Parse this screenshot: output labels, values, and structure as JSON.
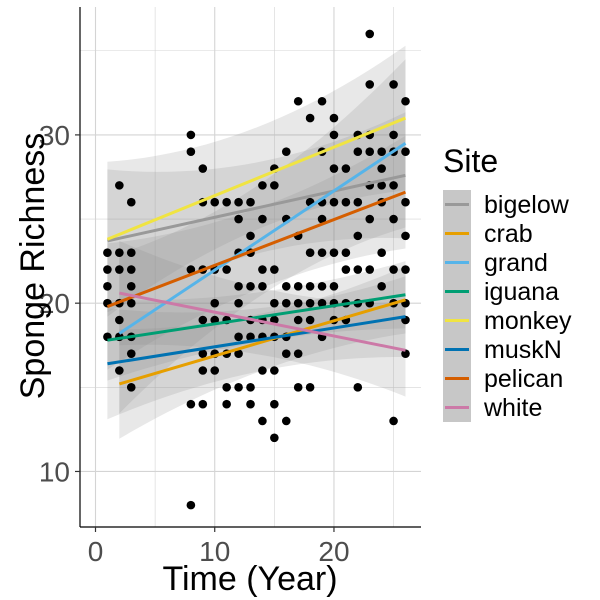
{
  "chart_data": {
    "type": "scatter",
    "xlabel": "Time (Year)",
    "ylabel": "Sponge Richness",
    "xlim": [
      -1.3,
      27.3
    ],
    "ylim": [
      6.7,
      37.6
    ],
    "x_ticks": [
      0,
      10,
      20
    ],
    "x_tick_labels": [
      "0",
      "10",
      "20"
    ],
    "y_ticks": [
      10,
      20,
      30
    ],
    "y_tick_labels": [
      "10",
      "20",
      "30"
    ],
    "grid": true,
    "legend_title": "Site",
    "legend_position": "right",
    "points": [
      {
        "x": 1,
        "y": 23
      },
      {
        "x": 1,
        "y": 22
      },
      {
        "x": 1,
        "y": 21
      },
      {
        "x": 1,
        "y": 20
      },
      {
        "x": 1,
        "y": 18
      },
      {
        "x": 2,
        "y": 27
      },
      {
        "x": 2,
        "y": 23
      },
      {
        "x": 2,
        "y": 22
      },
      {
        "x": 2,
        "y": 20
      },
      {
        "x": 2,
        "y": 19
      },
      {
        "x": 2,
        "y": 18
      },
      {
        "x": 2,
        "y": 16
      },
      {
        "x": 3,
        "y": 26
      },
      {
        "x": 3,
        "y": 23
      },
      {
        "x": 3,
        "y": 22
      },
      {
        "x": 3,
        "y": 21
      },
      {
        "x": 3,
        "y": 20
      },
      {
        "x": 3,
        "y": 18
      },
      {
        "x": 3,
        "y": 17
      },
      {
        "x": 3,
        "y": 15
      },
      {
        "x": 8,
        "y": 30
      },
      {
        "x": 8,
        "y": 29
      },
      {
        "x": 8,
        "y": 22
      },
      {
        "x": 8,
        "y": 14
      },
      {
        "x": 8,
        "y": 8
      },
      {
        "x": 9,
        "y": 28
      },
      {
        "x": 9,
        "y": 26
      },
      {
        "x": 9,
        "y": 22
      },
      {
        "x": 9,
        "y": 19
      },
      {
        "x": 9,
        "y": 17
      },
      {
        "x": 9,
        "y": 16
      },
      {
        "x": 9,
        "y": 14
      },
      {
        "x": 10,
        "y": 26
      },
      {
        "x": 10,
        "y": 22
      },
      {
        "x": 10,
        "y": 20
      },
      {
        "x": 10,
        "y": 19
      },
      {
        "x": 10,
        "y": 17
      },
      {
        "x": 10,
        "y": 16
      },
      {
        "x": 11,
        "y": 26
      },
      {
        "x": 11,
        "y": 22
      },
      {
        "x": 11,
        "y": 19
      },
      {
        "x": 11,
        "y": 17
      },
      {
        "x": 11,
        "y": 15
      },
      {
        "x": 11,
        "y": 14
      },
      {
        "x": 12,
        "y": 26
      },
      {
        "x": 12,
        "y": 25
      },
      {
        "x": 12,
        "y": 23
      },
      {
        "x": 12,
        "y": 21
      },
      {
        "x": 12,
        "y": 20
      },
      {
        "x": 12,
        "y": 18
      },
      {
        "x": 12,
        "y": 17
      },
      {
        "x": 12,
        "y": 15
      },
      {
        "x": 13,
        "y": 26
      },
      {
        "x": 13,
        "y": 24
      },
      {
        "x": 13,
        "y": 23
      },
      {
        "x": 13,
        "y": 21
      },
      {
        "x": 13,
        "y": 19
      },
      {
        "x": 13,
        "y": 18
      },
      {
        "x": 13,
        "y": 15
      },
      {
        "x": 13,
        "y": 14
      },
      {
        "x": 14,
        "y": 27
      },
      {
        "x": 14,
        "y": 25
      },
      {
        "x": 14,
        "y": 22
      },
      {
        "x": 14,
        "y": 21
      },
      {
        "x": 14,
        "y": 19
      },
      {
        "x": 14,
        "y": 18
      },
      {
        "x": 14,
        "y": 16
      },
      {
        "x": 14,
        "y": 13
      },
      {
        "x": 15,
        "y": 28
      },
      {
        "x": 15,
        "y": 27
      },
      {
        "x": 15,
        "y": 22
      },
      {
        "x": 15,
        "y": 20
      },
      {
        "x": 15,
        "y": 19
      },
      {
        "x": 15,
        "y": 18
      },
      {
        "x": 15,
        "y": 16
      },
      {
        "x": 15,
        "y": 14
      },
      {
        "x": 15,
        "y": 12
      },
      {
        "x": 16,
        "y": 29
      },
      {
        "x": 16,
        "y": 25
      },
      {
        "x": 16,
        "y": 21
      },
      {
        "x": 16,
        "y": 20
      },
      {
        "x": 16,
        "y": 18
      },
      {
        "x": 16,
        "y": 17
      },
      {
        "x": 16,
        "y": 13
      },
      {
        "x": 17,
        "y": 32
      },
      {
        "x": 17,
        "y": 24
      },
      {
        "x": 17,
        "y": 21
      },
      {
        "x": 17,
        "y": 20
      },
      {
        "x": 17,
        "y": 19
      },
      {
        "x": 17,
        "y": 17
      },
      {
        "x": 17,
        "y": 15
      },
      {
        "x": 18,
        "y": 31
      },
      {
        "x": 18,
        "y": 26
      },
      {
        "x": 18,
        "y": 23
      },
      {
        "x": 18,
        "y": 21
      },
      {
        "x": 18,
        "y": 20
      },
      {
        "x": 18,
        "y": 19
      },
      {
        "x": 18,
        "y": 15
      },
      {
        "x": 19,
        "y": 32
      },
      {
        "x": 19,
        "y": 29
      },
      {
        "x": 19,
        "y": 26
      },
      {
        "x": 19,
        "y": 25
      },
      {
        "x": 19,
        "y": 23
      },
      {
        "x": 19,
        "y": 21
      },
      {
        "x": 19,
        "y": 20
      },
      {
        "x": 19,
        "y": 18
      },
      {
        "x": 20,
        "y": 31
      },
      {
        "x": 20,
        "y": 30
      },
      {
        "x": 20,
        "y": 28
      },
      {
        "x": 20,
        "y": 26
      },
      {
        "x": 20,
        "y": 23
      },
      {
        "x": 20,
        "y": 21
      },
      {
        "x": 20,
        "y": 20
      },
      {
        "x": 20,
        "y": 19
      },
      {
        "x": 21,
        "y": 28
      },
      {
        "x": 21,
        "y": 26
      },
      {
        "x": 21,
        "y": 23
      },
      {
        "x": 21,
        "y": 22
      },
      {
        "x": 21,
        "y": 20
      },
      {
        "x": 21,
        "y": 19
      },
      {
        "x": 22,
        "y": 30
      },
      {
        "x": 22,
        "y": 29
      },
      {
        "x": 22,
        "y": 26
      },
      {
        "x": 22,
        "y": 24
      },
      {
        "x": 22,
        "y": 22
      },
      {
        "x": 22,
        "y": 20
      },
      {
        "x": 22,
        "y": 15
      },
      {
        "x": 23,
        "y": 36
      },
      {
        "x": 23,
        "y": 33
      },
      {
        "x": 23,
        "y": 30
      },
      {
        "x": 23,
        "y": 29
      },
      {
        "x": 23,
        "y": 27
      },
      {
        "x": 23,
        "y": 25
      },
      {
        "x": 23,
        "y": 22
      },
      {
        "x": 23,
        "y": 20
      },
      {
        "x": 24,
        "y": 29
      },
      {
        "x": 24,
        "y": 28
      },
      {
        "x": 24,
        "y": 27
      },
      {
        "x": 24,
        "y": 26
      },
      {
        "x": 24,
        "y": 23
      },
      {
        "x": 24,
        "y": 21
      },
      {
        "x": 25,
        "y": 33
      },
      {
        "x": 25,
        "y": 30
      },
      {
        "x": 25,
        "y": 29
      },
      {
        "x": 25,
        "y": 27
      },
      {
        "x": 25,
        "y": 25
      },
      {
        "x": 25,
        "y": 22
      },
      {
        "x": 25,
        "y": 20
      },
      {
        "x": 25,
        "y": 13
      },
      {
        "x": 26,
        "y": 32
      },
      {
        "x": 26,
        "y": 29
      },
      {
        "x": 26,
        "y": 26
      },
      {
        "x": 26,
        "y": 24
      },
      {
        "x": 26,
        "y": 22
      },
      {
        "x": 26,
        "y": 20
      },
      {
        "x": 26,
        "y": 19
      },
      {
        "x": 26,
        "y": 17
      }
    ],
    "series": [
      {
        "name": "bigelow",
        "color": "#999999",
        "x0": 1,
        "y0": 23.7,
        "x1": 26,
        "y1": 27.6,
        "lo0": 19.5,
        "hi0": 28.0,
        "lo1": 24.0,
        "hi1": 31.5
      },
      {
        "name": "crab",
        "color": "#E69F00",
        "x0": 2,
        "y0": 15.2,
        "x1": 26,
        "y1": 20.2,
        "lo0": 12.0,
        "hi0": 18.5,
        "lo1": 18.2,
        "hi1": 22.2
      },
      {
        "name": "grand",
        "color": "#56B4E9",
        "x0": 2,
        "y0": 18.2,
        "x1": 26,
        "y1": 29.5,
        "lo0": 13.5,
        "hi0": 23.0,
        "lo1": 24.5,
        "hi1": 34.5
      },
      {
        "name": "iguana",
        "color": "#009E73",
        "x0": 1,
        "y0": 17.8,
        "x1": 26,
        "y1": 20.5,
        "lo0": 15.5,
        "hi0": 20.3,
        "lo1": 18.5,
        "hi1": 22.5
      },
      {
        "name": "monkey",
        "color": "#F0E442",
        "x0": 1,
        "y0": 23.8,
        "x1": 26,
        "y1": 31.0,
        "lo0": 19.3,
        "hi0": 28.5,
        "lo1": 27.0,
        "hi1": 35.6
      },
      {
        "name": "muskN",
        "color": "#0072B2",
        "x0": 1,
        "y0": 16.4,
        "x1": 26,
        "y1": 19.2,
        "lo0": 13.2,
        "hi0": 19.8,
        "lo1": 16.8,
        "hi1": 21.6
      },
      {
        "name": "pelican",
        "color": "#D55E00",
        "x0": 1,
        "y0": 19.8,
        "x1": 26,
        "y1": 26.6,
        "lo0": 16.0,
        "hi0": 23.5,
        "lo1": 23.3,
        "hi1": 30.0
      },
      {
        "name": "white",
        "color": "#CC79A7",
        "x0": 2,
        "y0": 20.6,
        "x1": 26,
        "y1": 17.2,
        "lo0": 17.5,
        "hi0": 23.7,
        "lo1": 14.5,
        "hi1": 20.0
      }
    ]
  }
}
